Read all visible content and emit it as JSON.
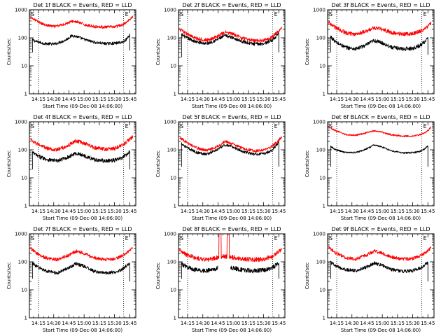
{
  "page": {
    "shared": {
      "ylabel": "Counts/sec",
      "y_ticks": [
        "1",
        "10",
        "100",
        "1000"
      ],
      "x_ticks": [
        "14:15",
        "14:30",
        "14:45",
        "15:00",
        "15:15",
        "15:30",
        "15:45"
      ],
      "xlabel": "Start Time (09-Dec-08 14:06:00)",
      "marker_start": "S",
      "marker_end": "E",
      "colors": {
        "events": "#000000",
        "lld": "#ff0000"
      }
    }
  },
  "chart_data": [
    {
      "type": "line",
      "title": "Det 1f BLACK = Events, RED = LLD",
      "xlabel": "Start Time (09-Dec-08 14:06:00)",
      "ylabel": "Counts/sec",
      "x_unit": "minutes after 14:06:00",
      "xlim": [
        0,
        105
      ],
      "ylim": [
        1,
        1000
      ],
      "y_scale": "log",
      "x_ticks": [
        "14:15",
        "14:30",
        "14:45",
        "15:00",
        "15:15",
        "15:30",
        "15:45"
      ],
      "vlines_x": [
        9,
        93
      ],
      "noise": 0.05,
      "series": [
        {
          "name": "Events",
          "color": "#000000",
          "start": 3,
          "end": 99,
          "start_drop": 30,
          "end_drop": 35,
          "x": [
            3,
            6,
            15,
            25,
            35,
            42,
            47,
            55,
            65,
            75,
            85,
            92,
            96,
            99
          ],
          "y": [
            85,
            75,
            62,
            60,
            80,
            120,
            110,
            85,
            68,
            62,
            64,
            70,
            90,
            130
          ]
        },
        {
          "name": "LLD",
          "color": "#ff0000",
          "start": 1,
          "end": 102,
          "x": [
            1,
            6,
            15,
            25,
            35,
            42,
            47,
            55,
            65,
            75,
            85,
            92,
            97,
            102
          ],
          "y": [
            560,
            420,
            290,
            250,
            310,
            390,
            370,
            290,
            250,
            240,
            250,
            290,
            380,
            600
          ]
        }
      ]
    },
    {
      "type": "line",
      "title": "Det 2f BLACK = Events, RED = LLD",
      "xlabel": "Start Time (09-Dec-08 14:06:00)",
      "ylabel": "Counts/sec",
      "x_unit": "minutes after 14:06:00",
      "xlim": [
        0,
        105
      ],
      "ylim": [
        1,
        1000
      ],
      "y_scale": "log",
      "x_ticks": [
        "14:15",
        "14:30",
        "14:45",
        "15:00",
        "15:15",
        "15:30",
        "15:45"
      ],
      "vlines_x": [
        9,
        93
      ],
      "noise": 0.06,
      "series": [
        {
          "name": "Events",
          "color": "#000000",
          "start": 3,
          "end": 99,
          "start_drop": 20,
          "end_drop": 30,
          "x": [
            3,
            8,
            18,
            28,
            38,
            46,
            54,
            64,
            74,
            84,
            92,
            96,
            99
          ],
          "y": [
            130,
            100,
            70,
            62,
            85,
            120,
            100,
            72,
            60,
            62,
            80,
            110,
            160
          ]
        },
        {
          "name": "LLD",
          "color": "#ff0000",
          "start": 1,
          "end": 102,
          "x": [
            1,
            8,
            18,
            28,
            38,
            46,
            54,
            64,
            74,
            84,
            92,
            98,
            102
          ],
          "y": [
            200,
            140,
            95,
            82,
            110,
            160,
            135,
            95,
            80,
            82,
            105,
            160,
            220
          ]
        }
      ]
    },
    {
      "type": "line",
      "title": "Det 3f BLACK = Events, RED = LLD",
      "xlabel": "Start Time (09-Dec-08 14:06:00)",
      "ylabel": "Counts/sec",
      "x_unit": "minutes after 14:06:00",
      "xlim": [
        0,
        105
      ],
      "ylim": [
        1,
        1000
      ],
      "y_scale": "log",
      "x_ticks": [
        "14:15",
        "14:30",
        "14:45",
        "15:00",
        "15:15",
        "15:30",
        "15:45"
      ],
      "vlines_x": [
        9,
        93
      ],
      "noise": 0.07,
      "series": [
        {
          "name": "Events",
          "color": "#000000",
          "start": 3,
          "end": 99,
          "start_drop": 30,
          "end_drop": 25,
          "x": [
            3,
            8,
            18,
            28,
            38,
            46,
            54,
            64,
            74,
            84,
            92,
            96,
            99
          ],
          "y": [
            110,
            70,
            45,
            40,
            55,
            80,
            65,
            45,
            40,
            42,
            55,
            75,
            95
          ]
        },
        {
          "name": "LLD",
          "color": "#ff0000",
          "start": 1,
          "end": 102,
          "x": [
            1,
            8,
            18,
            28,
            38,
            46,
            54,
            64,
            74,
            84,
            92,
            98,
            102
          ],
          "y": [
            350,
            230,
            150,
            135,
            170,
            230,
            200,
            150,
            135,
            140,
            175,
            240,
            330
          ]
        }
      ]
    },
    {
      "type": "line",
      "title": "Det 4f BLACK = Events, RED = LLD",
      "xlabel": "Start Time (09-Dec-08 14:06:00)",
      "ylabel": "Counts/sec",
      "x_unit": "minutes after 14:06:00",
      "xlim": [
        0,
        105
      ],
      "ylim": [
        1,
        1000
      ],
      "y_scale": "log",
      "x_ticks": [
        "14:15",
        "14:30",
        "14:45",
        "15:00",
        "15:15",
        "15:30",
        "15:45"
      ],
      "vlines_x": [
        9,
        93
      ],
      "noise": 0.07,
      "series": [
        {
          "name": "Events",
          "color": "#000000",
          "start": 3,
          "end": 99,
          "start_drop": 20,
          "end_drop": 20,
          "x": [
            3,
            8,
            18,
            28,
            38,
            46,
            54,
            64,
            74,
            84,
            92,
            96,
            99
          ],
          "y": [
            80,
            60,
            45,
            40,
            55,
            75,
            62,
            45,
            40,
            42,
            52,
            70,
            90
          ]
        },
        {
          "name": "LLD",
          "color": "#ff0000",
          "start": 1,
          "end": 102,
          "x": [
            1,
            8,
            18,
            28,
            38,
            46,
            54,
            64,
            74,
            84,
            92,
            98,
            102
          ],
          "y": [
            240,
            160,
            110,
            100,
            140,
            210,
            170,
            120,
            105,
            110,
            150,
            220,
            300
          ]
        }
      ]
    },
    {
      "type": "line",
      "title": "Det 5f BLACK = Events, RED = LLD",
      "xlabel": "Start Time (09-Dec-08 14:06:00)",
      "ylabel": "Counts/sec",
      "x_unit": "minutes after 14:06:00",
      "xlim": [
        0,
        105
      ],
      "ylim": [
        1,
        1000
      ],
      "y_scale": "log",
      "x_ticks": [
        "14:15",
        "14:30",
        "14:45",
        "15:00",
        "15:15",
        "15:30",
        "15:45"
      ],
      "vlines_x": [
        9,
        93
      ],
      "noise": 0.05,
      "series": [
        {
          "name": "Events",
          "color": "#000000",
          "start": 3,
          "end": 99,
          "start_drop": 25,
          "end_drop": 25,
          "x": [
            3,
            8,
            18,
            28,
            38,
            46,
            54,
            64,
            74,
            84,
            92,
            96,
            99
          ],
          "y": [
            170,
            120,
            80,
            70,
            100,
            150,
            125,
            85,
            70,
            72,
            95,
            140,
            190
          ]
        },
        {
          "name": "LLD",
          "color": "#ff0000",
          "start": 1,
          "end": 102,
          "x": [
            1,
            8,
            18,
            28,
            38,
            46,
            54,
            64,
            74,
            84,
            92,
            98,
            102
          ],
          "y": [
            280,
            185,
            115,
            95,
            130,
            200,
            160,
            110,
            92,
            96,
            130,
            200,
            290
          ]
        }
      ]
    },
    {
      "type": "line",
      "title": "Det 6f BLACK = Events, RED = LLD",
      "xlabel": "Start Time (09-Dec-08 14:06:00)",
      "ylabel": "Counts/sec",
      "x_unit": "minutes after 14:06:00",
      "xlim": [
        0,
        105
      ],
      "ylim": [
        1,
        1000
      ],
      "y_scale": "log",
      "x_ticks": [
        "14:15",
        "14:30",
        "14:45",
        "15:00",
        "15:15",
        "15:30",
        "15:45"
      ],
      "vlines_x": [
        9,
        93
      ],
      "noise": 0.03,
      "series": [
        {
          "name": "Events",
          "color": "#000000",
          "start": 3,
          "end": 99,
          "start_drop": 25,
          "end_drop": 25,
          "x": [
            3,
            8,
            18,
            28,
            38,
            46,
            54,
            64,
            74,
            84,
            92,
            96,
            99
          ],
          "y": [
            130,
            100,
            80,
            80,
            105,
            150,
            125,
            90,
            78,
            78,
            90,
            110,
            140
          ]
        },
        {
          "name": "LLD",
          "color": "#ff0000",
          "start": 1,
          "end": 102,
          "x": [
            1,
            8,
            18,
            28,
            38,
            46,
            54,
            64,
            74,
            84,
            92,
            98,
            102
          ],
          "y": [
            650,
            480,
            350,
            330,
            400,
            480,
            420,
            340,
            310,
            310,
            350,
            450,
            640
          ]
        }
      ]
    },
    {
      "type": "line",
      "title": "Det 7f BLACK = Events, RED = LLD",
      "xlabel": "Start Time (09-Dec-08 14:06:00)",
      "ylabel": "Counts/sec",
      "x_unit": "minutes after 14:06:00",
      "xlim": [
        0,
        105
      ],
      "ylim": [
        1,
        1000
      ],
      "y_scale": "log",
      "x_ticks": [
        "14:15",
        "14:30",
        "14:45",
        "15:00",
        "15:15",
        "15:30",
        "15:45"
      ],
      "vlines_x": [
        9,
        93
      ],
      "noise": 0.06,
      "series": [
        {
          "name": "Events",
          "color": "#000000",
          "start": 3,
          "end": 99,
          "start_drop": 25,
          "end_drop": 20,
          "x": [
            3,
            8,
            18,
            28,
            38,
            46,
            54,
            64,
            74,
            84,
            92,
            96,
            99
          ],
          "y": [
            90,
            65,
            45,
            40,
            60,
            85,
            70,
            45,
            40,
            42,
            55,
            75,
            90
          ]
        },
        {
          "name": "LLD",
          "color": "#ff0000",
          "start": 1,
          "end": 102,
          "x": [
            1,
            8,
            18,
            28,
            38,
            46,
            54,
            64,
            74,
            84,
            92,
            98,
            102
          ],
          "y": [
            300,
            190,
            130,
            120,
            170,
            240,
            200,
            140,
            120,
            125,
            165,
            230,
            310
          ]
        }
      ]
    },
    {
      "type": "line",
      "title": "Det 8f BLACK = Events, RED = LLD",
      "xlabel": "Start Time (09-Dec-08 14:06:00)",
      "ylabel": "Counts/sec",
      "x_unit": "minutes after 14:06:00",
      "xlim": [
        0,
        105
      ],
      "ylim": [
        1,
        1000
      ],
      "y_scale": "log",
      "x_ticks": [
        "14:15",
        "14:30",
        "14:45",
        "15:00",
        "15:15",
        "15:30",
        "15:45"
      ],
      "vlines_x": [
        9,
        93
      ],
      "noise": 0.08,
      "series": [
        {
          "name": "Events",
          "color": "#000000",
          "start": 3,
          "end": 99,
          "start_drop": 25,
          "end_drop": 25,
          "gaps": [
            [
              39,
              51
            ]
          ],
          "x": [
            3,
            8,
            18,
            28,
            36,
            39,
            51,
            56,
            64,
            74,
            84,
            92,
            96,
            99
          ],
          "y": [
            85,
            65,
            50,
            48,
            55,
            62,
            62,
            58,
            50,
            48,
            50,
            60,
            75,
            90
          ]
        },
        {
          "name": "LLD",
          "color": "#ff0000",
          "start": 1,
          "end": 102,
          "spikes": [
            [
              40,
              42
            ],
            [
              48,
              50
            ]
          ],
          "x": [
            1,
            8,
            18,
            28,
            36,
            40,
            44,
            49,
            56,
            64,
            74,
            84,
            92,
            98,
            102
          ],
          "y": [
            270,
            180,
            130,
            120,
            135,
            150,
            155,
            150,
            140,
            125,
            120,
            125,
            150,
            220,
            300
          ]
        }
      ]
    },
    {
      "type": "line",
      "title": "Det 9f BLACK = Events, RED = LLD",
      "xlabel": "Start Time (09-Dec-08 14:06:00)",
      "ylabel": "Counts/sec",
      "x_unit": "minutes after 14:06:00",
      "xlim": [
        0,
        105
      ],
      "ylim": [
        1,
        1000
      ],
      "y_scale": "log",
      "x_ticks": [
        "14:15",
        "14:30",
        "14:45",
        "15:00",
        "15:15",
        "15:30",
        "15:45"
      ],
      "vlines_x": [
        9,
        93
      ],
      "noise": 0.06,
      "series": [
        {
          "name": "Events",
          "color": "#000000",
          "start": 3,
          "end": 99,
          "start_drop": 25,
          "end_drop": 20,
          "x": [
            3,
            8,
            18,
            28,
            38,
            46,
            54,
            64,
            74,
            84,
            92,
            96,
            99
          ],
          "y": [
            95,
            70,
            52,
            48,
            65,
            90,
            75,
            52,
            46,
            48,
            60,
            80,
            95
          ]
        },
        {
          "name": "LLD",
          "color": "#ff0000",
          "start": 1,
          "end": 102,
          "x": [
            1,
            8,
            18,
            28,
            38,
            46,
            54,
            64,
            74,
            84,
            92,
            98,
            102
          ],
          "y": [
            320,
            210,
            140,
            125,
            170,
            240,
            200,
            145,
            125,
            130,
            165,
            230,
            320
          ]
        }
      ]
    }
  ]
}
